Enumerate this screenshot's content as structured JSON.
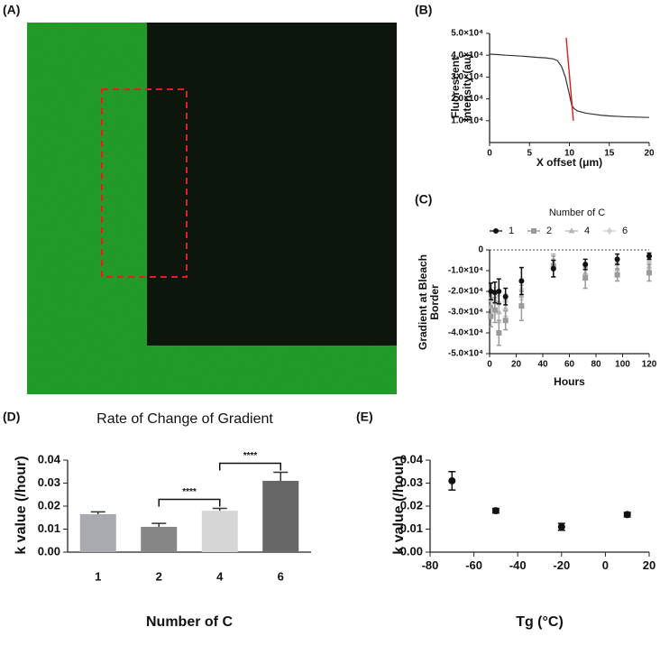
{
  "panel_labels": [
    "(A)",
    "(B)",
    "(C)",
    "(D)",
    "(E)"
  ],
  "chart_data": [
    {
      "type": "line",
      "xlabel": "X offset (μm)",
      "ylabel": [
        "Fluorescent",
        "Intensity (au)"
      ],
      "xlim": [
        0,
        20
      ],
      "xticks": [
        0,
        5,
        10,
        15,
        20
      ],
      "ylim": [
        0,
        50000
      ],
      "yticks": [
        {
          "value": 10000,
          "label": "1.0×10⁴"
        },
        {
          "value": 20000,
          "label": "2.0×10⁴"
        },
        {
          "value": 30000,
          "label": "3.0×10⁴"
        },
        {
          "value": 40000,
          "label": "4.0×10⁴"
        },
        {
          "value": 50000,
          "label": "5.0×10⁴"
        }
      ],
      "series": [
        {
          "color": "#333333",
          "x": [
            0,
            1,
            2,
            3,
            4,
            5,
            6,
            7,
            8,
            8.5,
            9,
            9.5,
            10,
            10.3,
            10.6,
            11,
            12,
            13,
            14,
            15,
            16,
            17,
            18,
            19,
            20
          ],
          "values": [
            40500,
            40300,
            40000,
            39800,
            39600,
            39300,
            39000,
            38800,
            38300,
            37500,
            35000,
            30000,
            22000,
            17000,
            15500,
            14500,
            13500,
            13000,
            12500,
            12200,
            12000,
            11800,
            11700,
            11600,
            11500
          ]
        },
        {
          "color": "#e41a1c",
          "x": [
            9.6,
            10.5
          ],
          "values": [
            48000,
            10000
          ]
        }
      ]
    },
    {
      "type": "scatter",
      "xlabel": "Hours",
      "ylabel": [
        "Gradient at Bleach",
        "Border"
      ],
      "legend_title": "Number of C",
      "zero_line": true,
      "xlim": [
        0,
        120
      ],
      "xticks": [
        0,
        20,
        40,
        60,
        80,
        100,
        120
      ],
      "ylim": [
        -50000,
        0
      ],
      "yticks": [
        0,
        {
          "value": -10000,
          "label": "-1.0×10⁴"
        },
        {
          "value": -20000,
          "label": "-2.0×10⁴"
        },
        {
          "value": -30000,
          "label": "-3.0×10⁴"
        },
        {
          "value": -40000,
          "label": "-4.0×10⁴"
        },
        {
          "value": -50000,
          "label": "-5.0×10⁴"
        }
      ],
      "x": [
        1,
        4,
        7,
        12,
        24,
        48,
        72,
        96,
        120
      ],
      "series": [
        {
          "name": "1",
          "color": "#111111",
          "marker": "circle",
          "values": [
            -20000,
            -20500,
            -20000,
            -22500,
            -15000,
            -9000,
            -7000,
            -4500,
            -3000
          ],
          "errors": [
            4000,
            5000,
            6000,
            4000,
            6500,
            4000,
            2500,
            2500,
            1500
          ]
        },
        {
          "name": "2",
          "color": "#9a9a9a",
          "marker": "square",
          "values": [
            -32000,
            -29000,
            -40000,
            -34000,
            -27000,
            -8000,
            -13500,
            -12000,
            -11000
          ],
          "errors": [
            5000,
            6000,
            6000,
            4500,
            7000,
            5000,
            5000,
            3000,
            4000
          ]
        },
        {
          "name": "4",
          "color": "#b5b5b5",
          "marker": "triangle",
          "values": [
            -27000,
            -24000,
            -30000,
            -28000,
            -22000,
            -6000,
            -11000,
            -9000,
            -8000
          ],
          "errors": [
            4000,
            4000,
            5000,
            4000,
            5000,
            4000,
            3000,
            3000,
            3000
          ]
        },
        {
          "name": "6",
          "color": "#d0d0d0",
          "marker": "diamond",
          "values": [
            -24000,
            -22000,
            -26000,
            -25000,
            -19000,
            -5000,
            -9000,
            -7000,
            -6000
          ],
          "errors": [
            4000,
            4000,
            4000,
            4000,
            5000,
            3000,
            3000,
            3000,
            3000
          ]
        }
      ]
    },
    {
      "type": "bar",
      "title": "Rate of Change of Gradient",
      "xlabel": "Number of C",
      "ylabel": "k value (/hour)",
      "categories": [
        "1",
        "2",
        "4",
        "6"
      ],
      "values": [
        0.0165,
        0.011,
        0.018,
        0.031
      ],
      "errors": [
        0.001,
        0.0015,
        0.001,
        0.0037
      ],
      "colors": [
        "#a9a9b0",
        "#868686",
        "#d6d6d6",
        "#676767"
      ],
      "ylim": [
        0,
        0.04
      ],
      "yticks": [
        {
          "value": 0,
          "label": "0.00"
        },
        {
          "value": 0.01,
          "label": "0.01"
        },
        {
          "value": 0.02,
          "label": "0.02"
        },
        {
          "value": 0.03,
          "label": "0.03"
        },
        {
          "value": 0.04,
          "label": "0.04"
        }
      ],
      "annotations": [
        "****",
        "****"
      ]
    },
    {
      "type": "scatter",
      "xlabel": "Tg (°C)",
      "ylabel": "k value (/hour)",
      "xlim": [
        -80,
        20
      ],
      "xticks": [
        -80,
        -60,
        -40,
        -20,
        0,
        20
      ],
      "ylim": [
        0,
        0.04
      ],
      "yticks": [
        {
          "value": 0,
          "label": "0.00"
        },
        {
          "value": 0.01,
          "label": "0.01"
        },
        {
          "value": 0.02,
          "label": "0.02"
        },
        {
          "value": 0.03,
          "label": "0.03"
        },
        {
          "value": 0.04,
          "label": "0.04"
        }
      ],
      "x": [
        -70,
        -50,
        -20,
        10
      ],
      "series": [
        {
          "color": "#111111",
          "marker": "circle",
          "values": [
            0.031,
            0.018,
            0.011,
            0.0163
          ],
          "errors": [
            0.004,
            0.001,
            0.0015,
            0.001
          ]
        }
      ]
    }
  ]
}
